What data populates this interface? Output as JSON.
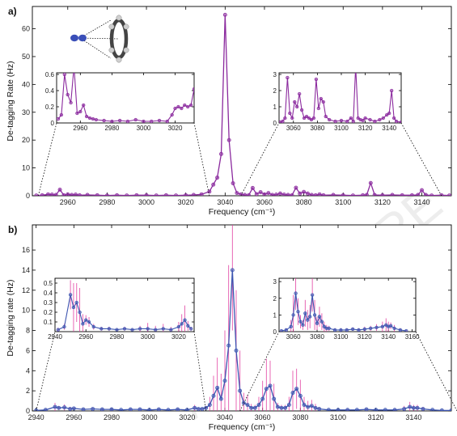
{
  "watermark": "ARTICLE PRE",
  "chart_data": [
    {
      "type": "line",
      "panel_label": "a)",
      "xlabel": "Frequency (cm⁻¹)",
      "ylabel": "De-tagging Rate (Hz)",
      "xlim": [
        2942,
        3155
      ],
      "ylim": [
        0,
        68
      ],
      "xticks": [
        2960,
        2980,
        3000,
        3020,
        3040,
        3060,
        3080,
        3100,
        3120,
        3140
      ],
      "yticks": [
        0,
        10,
        20,
        30,
        40,
        50,
        60
      ],
      "grid": false,
      "color": "#8B2A9E",
      "molecule_inset": "benzene-N2 complex",
      "series": [
        {
          "x": [
            2944,
            2947,
            2950,
            2952,
            2954,
            2956,
            2958,
            2960,
            2962,
            2964,
            2966,
            2970,
            2975,
            2980,
            2985,
            2990,
            2995,
            3000,
            3005,
            3010,
            3015,
            3020,
            3024,
            3028,
            3032,
            3034,
            3036,
            3038,
            3040,
            3042,
            3044,
            3046,
            3048,
            3050,
            3052,
            3054,
            3056,
            3058,
            3060,
            3062,
            3064,
            3066,
            3068,
            3070,
            3072,
            3074,
            3076,
            3078,
            3080,
            3082,
            3084,
            3086,
            3088,
            3090,
            3095,
            3100,
            3105,
            3110,
            3112,
            3114,
            3116,
            3120,
            3125,
            3130,
            3135,
            3138,
            3140,
            3142,
            3145,
            3150,
            3154
          ],
          "y": [
            0.1,
            0.2,
            0.5,
            0.4,
            0.3,
            2.2,
            0.2,
            0.5,
            0.3,
            0.4,
            0.2,
            0.3,
            0.2,
            0.1,
            0.2,
            0.1,
            0.2,
            0.2,
            0.1,
            0.2,
            0.1,
            0.2,
            0.3,
            0.5,
            1.5,
            4.0,
            6.5,
            15.0,
            65.0,
            20.0,
            4.5,
            1.0,
            0.5,
            0.3,
            0.2,
            2.8,
            0.6,
            1.3,
            0.5,
            1.0,
            0.3,
            0.4,
            0.8,
            0.4,
            0.3,
            0.2,
            2.9,
            0.8,
            1.4,
            0.8,
            0.3,
            0.2,
            0.5,
            0.2,
            0.3,
            0.2,
            0.1,
            0.2,
            0.3,
            4.6,
            0.3,
            0.2,
            0.3,
            0.2,
            0.2,
            0.3,
            2.0,
            0.3,
            0.1,
            0.2,
            0.1
          ]
        }
      ],
      "insets": [
        {
          "xlim": [
            2945,
            3032
          ],
          "ylim": [
            0,
            0.62
          ],
          "xticks": [
            2960,
            2980,
            3000,
            3020
          ],
          "yticks": [
            0,
            0.2,
            0.4,
            0.6
          ],
          "ytick_labels": [
            "0",
            "0.2",
            "0.4",
            "0.6"
          ],
          "x": [
            2946,
            2948,
            2950,
            2952,
            2954,
            2956,
            2958,
            2960,
            2962,
            2964,
            2966,
            2968,
            2970,
            2975,
            2980,
            2985,
            2990,
            2995,
            3000,
            3005,
            3010,
            3015,
            3018,
            3020,
            3022,
            3024,
            3026,
            3028,
            3030,
            3032
          ],
          "y": [
            0.05,
            0.1,
            0.6,
            0.35,
            0.25,
            0.7,
            0.12,
            0.14,
            0.22,
            0.08,
            0.06,
            0.05,
            0.04,
            0.03,
            0.02,
            0.03,
            0.02,
            0.04,
            0.02,
            0.02,
            0.03,
            0.02,
            0.1,
            0.18,
            0.2,
            0.18,
            0.22,
            0.2,
            0.22,
            0.42
          ]
        },
        {
          "xlim": [
            3048,
            3150
          ],
          "ylim": [
            0,
            3.1
          ],
          "xticks": [
            3060,
            3080,
            3100,
            3120,
            3140
          ],
          "yticks": [
            0,
            1,
            2,
            3
          ],
          "ytick_labels": [
            "0",
            "1",
            "2",
            "3"
          ],
          "x": [
            3049,
            3051,
            3053,
            3055,
            3057,
            3059,
            3061,
            3063,
            3065,
            3067,
            3069,
            3071,
            3073,
            3075,
            3077,
            3079,
            3081,
            3083,
            3085,
            3087,
            3090,
            3095,
            3100,
            3105,
            3108,
            3110,
            3112,
            3114,
            3116,
            3118,
            3120,
            3124,
            3128,
            3132,
            3135,
            3138,
            3140,
            3142,
            3144,
            3146,
            3150
          ],
          "y": [
            0.05,
            0.1,
            0.3,
            2.8,
            0.6,
            0.3,
            1.3,
            1.0,
            1.8,
            0.8,
            0.3,
            0.4,
            0.3,
            0.2,
            0.3,
            2.7,
            0.9,
            1.5,
            1.3,
            0.4,
            0.2,
            0.1,
            0.15,
            0.1,
            0.3,
            0.1,
            3.5,
            0.3,
            0.2,
            0.15,
            0.3,
            0.2,
            0.1,
            0.2,
            0.3,
            0.5,
            0.6,
            2.0,
            0.3,
            0.1,
            0.05
          ]
        }
      ]
    },
    {
      "type": "line",
      "panel_label": "b)",
      "xlabel": "Frequency (cm⁻¹)",
      "ylabel": "De-tagging rate (Hz)",
      "xlim": [
        2938,
        3160
      ],
      "ylim": [
        0,
        18.5
      ],
      "xticks": [
        2940,
        2960,
        2980,
        3000,
        3020,
        3040,
        3060,
        3080,
        3100,
        3120,
        3140
      ],
      "yticks": [
        0,
        2,
        4,
        6,
        8,
        10,
        12,
        14,
        16
      ],
      "grid": false,
      "color": "#3D55B0",
      "errorbar_color": "#E0389E",
      "series": [
        {
          "x": [
            2940,
            2945,
            2950,
            2952,
            2955,
            2958,
            2960,
            2965,
            2970,
            2975,
            2980,
            2985,
            2990,
            2995,
            3000,
            3005,
            3010,
            3015,
            3020,
            3024,
            3026,
            3028,
            3030,
            3032,
            3034,
            3036,
            3038,
            3040,
            3042,
            3044,
            3046,
            3048,
            3050,
            3052,
            3054,
            3056,
            3058,
            3060,
            3062,
            3064,
            3066,
            3068,
            3070,
            3072,
            3074,
            3076,
            3078,
            3080,
            3082,
            3084,
            3086,
            3088,
            3090,
            3095,
            3100,
            3105,
            3110,
            3115,
            3120,
            3125,
            3130,
            3135,
            3138,
            3140,
            3142,
            3145,
            3150,
            3155,
            3160
          ],
          "y": [
            0.05,
            0.1,
            0.4,
            0.3,
            0.35,
            0.2,
            0.25,
            0.15,
            0.2,
            0.15,
            0.15,
            0.1,
            0.15,
            0.15,
            0.1,
            0.15,
            0.1,
            0.15,
            0.1,
            0.3,
            0.2,
            0.2,
            0.3,
            0.6,
            1.5,
            2.3,
            1.2,
            3.0,
            6.5,
            14.0,
            6.0,
            2.0,
            0.8,
            0.6,
            0.3,
            0.3,
            0.6,
            1.2,
            2.2,
            2.5,
            1.2,
            0.4,
            0.3,
            0.3,
            0.6,
            1.8,
            2.2,
            1.5,
            0.6,
            0.4,
            0.5,
            0.3,
            0.2,
            0.1,
            0.1,
            0.1,
            0.1,
            0.15,
            0.1,
            0.1,
            0.1,
            0.2,
            0.4,
            0.3,
            0.3,
            0.2,
            0.1,
            0.05,
            0.05
          ],
          "err": [
            0.05,
            0.1,
            0.4,
            0.2,
            0.3,
            0.2,
            0.1,
            0.1,
            0.1,
            0.1,
            0.1,
            0.05,
            0.1,
            0.1,
            0.05,
            0.1,
            0.05,
            0.1,
            0.05,
            0.3,
            0.1,
            0.1,
            0.2,
            0.8,
            2.0,
            3.0,
            2.5,
            5.0,
            8.0,
            6.0,
            6.0,
            4.0,
            1.0,
            1.0,
            0.4,
            0.3,
            0.8,
            1.8,
            3.0,
            2.5,
            1.5,
            0.4,
            0.3,
            0.3,
            0.8,
            2.2,
            2.0,
            1.6,
            0.8,
            0.6,
            0.6,
            0.4,
            0.2,
            0.05,
            0.05,
            0.1,
            0.05,
            0.1,
            0.05,
            0.05,
            0.1,
            0.3,
            0.5,
            0.3,
            0.3,
            0.2,
            0.05,
            0.05,
            0.05
          ]
        }
      ],
      "insets": [
        {
          "xlim": [
            2940,
            3030
          ],
          "ylim": [
            0,
            0.55
          ],
          "xticks": [
            2940,
            2960,
            2980,
            3000,
            3020
          ],
          "yticks": [
            0.1,
            0.2,
            0.3,
            0.4,
            0.5
          ],
          "ytick_labels": [
            "0.1",
            "0.2",
            "0.3",
            "0.4",
            "0.5"
          ],
          "x": [
            2942,
            2946,
            2950,
            2952,
            2954,
            2956,
            2958,
            2960,
            2962,
            2965,
            2970,
            2975,
            2980,
            2985,
            2990,
            2995,
            3000,
            3005,
            3010,
            3015,
            3020,
            3022,
            3024,
            3026,
            3028
          ],
          "y": [
            0.02,
            0.05,
            0.38,
            0.25,
            0.3,
            0.2,
            0.08,
            0.12,
            0.1,
            0.05,
            0.03,
            0.03,
            0.02,
            0.03,
            0.02,
            0.03,
            0.03,
            0.02,
            0.03,
            0.02,
            0.05,
            0.08,
            0.12,
            0.06,
            0.03
          ],
          "err": [
            0.02,
            0.03,
            0.15,
            0.25,
            0.2,
            0.25,
            0.1,
            0.05,
            0.05,
            0.03,
            0.02,
            0.02,
            0.01,
            0.02,
            0.01,
            0.03,
            0.06,
            0.04,
            0.05,
            0.03,
            0.05,
            0.1,
            0.15,
            0.05,
            0.02
          ]
        },
        {
          "xlim": [
            3048,
            3163
          ],
          "ylim": [
            0,
            3.2
          ],
          "xticks": [
            3060,
            3080,
            3100,
            3120,
            3140,
            3160
          ],
          "yticks": [
            0,
            1,
            2,
            3
          ],
          "ytick_labels": [
            "0",
            "1",
            "2",
            "3"
          ],
          "x": [
            3050,
            3054,
            3058,
            3060,
            3062,
            3064,
            3066,
            3068,
            3070,
            3072,
            3074,
            3076,
            3078,
            3080,
            3082,
            3084,
            3086,
            3088,
            3090,
            3095,
            3100,
            3105,
            3110,
            3115,
            3120,
            3125,
            3130,
            3135,
            3138,
            3140,
            3142,
            3145,
            3150,
            3155
          ],
          "y": [
            0.05,
            0.1,
            0.3,
            1.0,
            2.3,
            1.2,
            0.6,
            0.4,
            1.1,
            0.7,
            0.9,
            2.2,
            1.0,
            0.5,
            0.9,
            0.6,
            0.3,
            0.2,
            0.2,
            0.1,
            0.1,
            0.1,
            0.15,
            0.1,
            0.15,
            0.2,
            0.25,
            0.3,
            0.4,
            0.3,
            0.35,
            0.2,
            0.1,
            0.05
          ],
          "err": [
            0.05,
            0.1,
            0.4,
            1.2,
            1.0,
            0.8,
            0.4,
            0.3,
            0.8,
            0.6,
            0.7,
            1.0,
            0.9,
            0.4,
            0.6,
            0.5,
            0.3,
            0.2,
            0.15,
            0.1,
            0.1,
            0.1,
            0.1,
            0.1,
            0.15,
            0.15,
            0.2,
            0.3,
            0.4,
            0.3,
            0.2,
            0.2,
            0.1,
            0.05
          ]
        }
      ]
    }
  ]
}
